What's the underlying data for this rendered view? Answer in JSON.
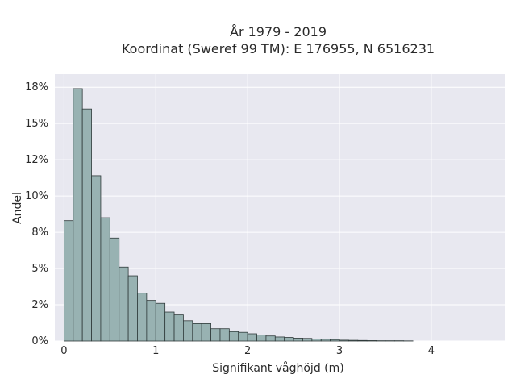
{
  "chart_data": {
    "type": "bar",
    "title": "År 1979 - 2019",
    "subtitle": "Koordinat (Sweref 99 TM): E 176955, N 6516231",
    "xlabel": "Signifikant våghöjd (m)",
    "ylabel": "Andel",
    "xlim": [
      -0.1,
      4.8
    ],
    "ylim": [
      0,
      0.184
    ],
    "x_ticks": [
      {
        "value": 0,
        "label": "0"
      },
      {
        "value": 1,
        "label": "1"
      },
      {
        "value": 2,
        "label": "2"
      },
      {
        "value": 3,
        "label": "3"
      },
      {
        "value": 4,
        "label": "4"
      }
    ],
    "y_ticks": [
      {
        "value": 0,
        "label": "0%"
      },
      {
        "value": 0.025,
        "label": "2%"
      },
      {
        "value": 0.05,
        "label": "5%"
      },
      {
        "value": 0.075,
        "label": "8%"
      },
      {
        "value": 0.1,
        "label": "10%"
      },
      {
        "value": 0.125,
        "label": "12%"
      },
      {
        "value": 0.15,
        "label": "15%"
      },
      {
        "value": 0.175,
        "label": "18%"
      }
    ],
    "bin_width": 0.1,
    "bin_starts": [
      0.0,
      0.1,
      0.2,
      0.3,
      0.4,
      0.5,
      0.6,
      0.7,
      0.8,
      0.9,
      1.0,
      1.1,
      1.2,
      1.3,
      1.4,
      1.5,
      1.6,
      1.7,
      1.8,
      1.9,
      2.0,
      2.1,
      2.2,
      2.3,
      2.4,
      2.5,
      2.6,
      2.7,
      2.8,
      2.9,
      3.0,
      3.1,
      3.2,
      3.3,
      3.4,
      3.5,
      3.6,
      3.7
    ],
    "values": [
      0.083,
      0.174,
      0.16,
      0.114,
      0.085,
      0.071,
      0.051,
      0.045,
      0.033,
      0.028,
      0.026,
      0.02,
      0.018,
      0.014,
      0.012,
      0.012,
      0.0085,
      0.0085,
      0.0065,
      0.006,
      0.005,
      0.0042,
      0.0035,
      0.0028,
      0.0025,
      0.002,
      0.0018,
      0.0014,
      0.0012,
      0.001,
      0.0006,
      0.0005,
      0.0004,
      0.0003,
      0.0002,
      0.0002,
      0.0002,
      0.0001
    ],
    "grid": true,
    "colors": {
      "bar_fill": "#98b2b2",
      "bar_edge": "#2f3a3a",
      "plot_background": "#e8e8f0",
      "grid": "#ffffff"
    }
  }
}
